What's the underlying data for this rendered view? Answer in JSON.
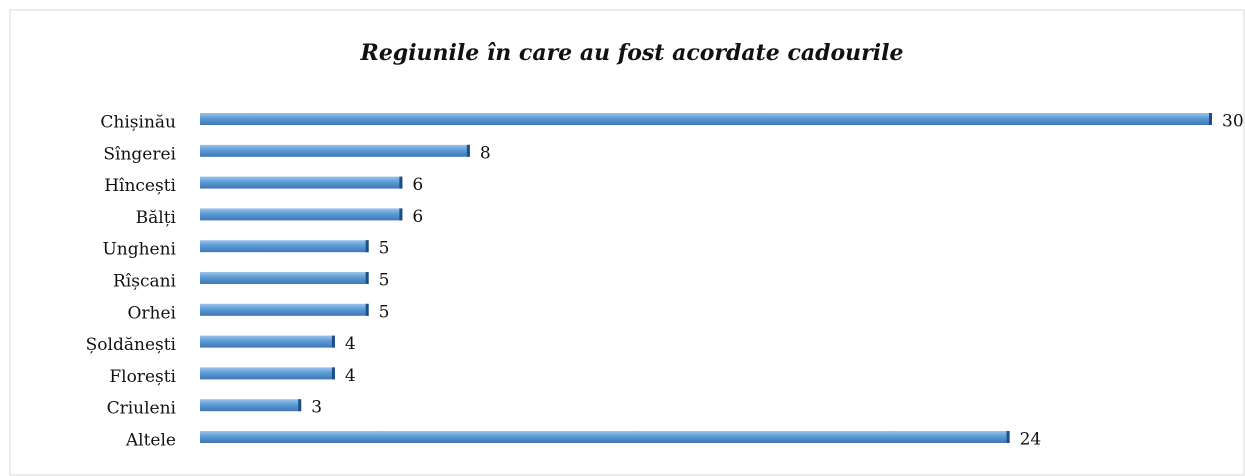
{
  "chart_data": {
    "type": "bar",
    "orientation": "horizontal",
    "title": "Regiunile în care au fost acordate cadourile",
    "categories": [
      "Chișinău",
      "Sîngerei",
      "Hîncești",
      "Bălți",
      "Ungheni",
      "Rîșcani",
      "Orhei",
      "Șoldănești",
      "Florești",
      "Criuleni",
      "Altele"
    ],
    "values": [
      30,
      8,
      6,
      6,
      5,
      5,
      5,
      4,
      4,
      3,
      24
    ],
    "color": "#5b9bd5"
  }
}
